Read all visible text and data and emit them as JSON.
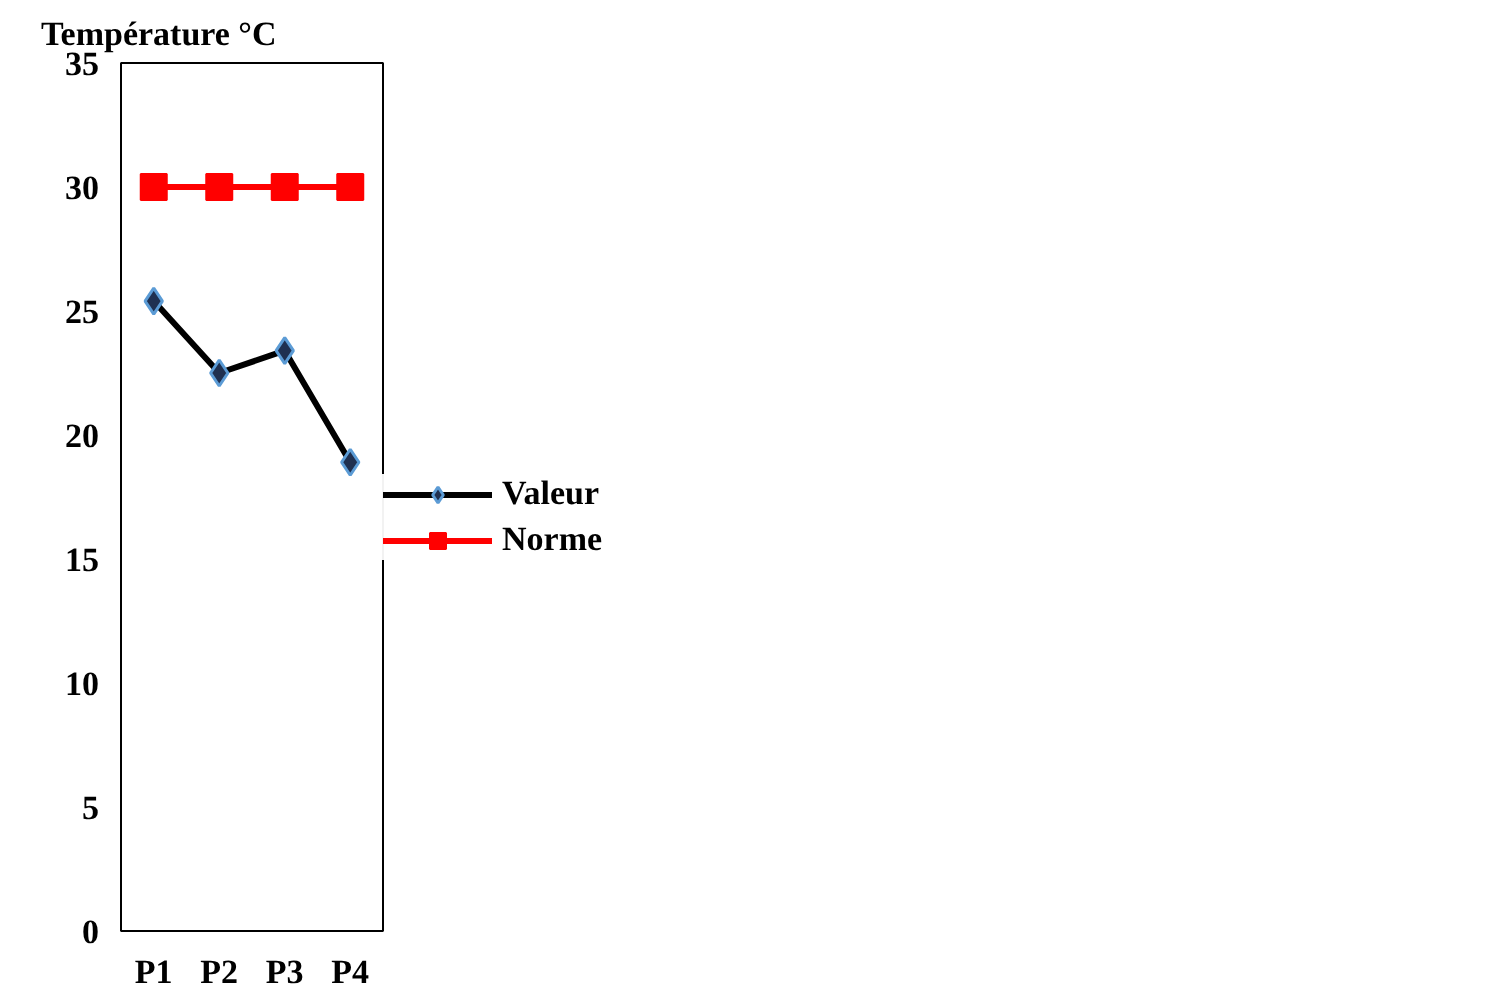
{
  "chart_data": {
    "type": "line",
    "ylabel": "Température °C",
    "categories": [
      "P1",
      "P2",
      "P3",
      "P4"
    ],
    "series": [
      {
        "name": "Valeur",
        "color": "#000000",
        "marker": "diamond",
        "values": [
          25.4,
          22.5,
          23.4,
          18.9
        ]
      },
      {
        "name": "Norme",
        "color": "#ff0000",
        "marker": "square",
        "values": [
          30,
          30,
          30,
          30
        ]
      }
    ],
    "ylim": [
      0,
      35
    ],
    "yticks": [
      0,
      5,
      10,
      15,
      20,
      25,
      30,
      35
    ],
    "grid": false,
    "legend": "right",
    "line_style": "solid"
  }
}
